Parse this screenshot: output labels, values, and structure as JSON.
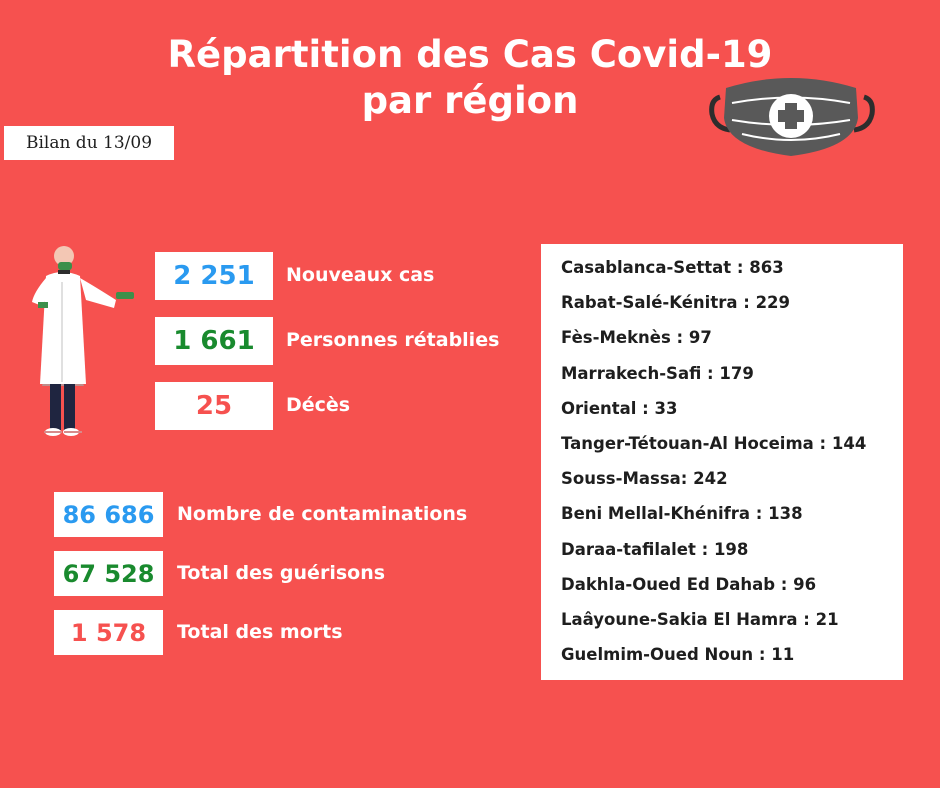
{
  "header": {
    "title_line1": "Répartition des Cas Covid-19",
    "title_line2": "par région",
    "date_label": "Bilan du 13/09"
  },
  "icons": {
    "mask": "face-mask-with-cross-icon",
    "doctor": "doctor-illustration"
  },
  "daily": {
    "new_cases": {
      "value": "2 251",
      "label": "Nouveaux cas"
    },
    "recovered": {
      "value": "1 661",
      "label": "Personnes rétablies"
    },
    "deaths": {
      "value": "25",
      "label": "Décès"
    }
  },
  "totals": {
    "contaminations": {
      "value": "86 686",
      "label": "Nombre de contaminations"
    },
    "recoveries": {
      "value": "67 528",
      "label": "Total des guérisons"
    },
    "deaths": {
      "value": "1 578",
      "label": "Total des morts"
    }
  },
  "regions": [
    "Casablanca-Settat : 863",
    "Rabat-Salé-Kénitra : 229",
    "Fès-Meknès : 97",
    "Marrakech-Safi : 179",
    "Oriental : 33",
    "Tanger-Tétouan-Al Hoceima : 144",
    "Souss-Massa: 242",
    "Beni Mellal-Khénifra : 138",
    "Daraa-tafilalet : 198",
    "Dakhla-Oued Ed Dahab : 96",
    "Laâyoune-Sakia El Hamra :  21",
    "Guelmim-Oued Noun : 11"
  ],
  "colors": {
    "background": "#f6514f",
    "blue": "#2a9af0",
    "green": "#198a2e",
    "red": "#f6514f",
    "panel": "#ffffff"
  }
}
